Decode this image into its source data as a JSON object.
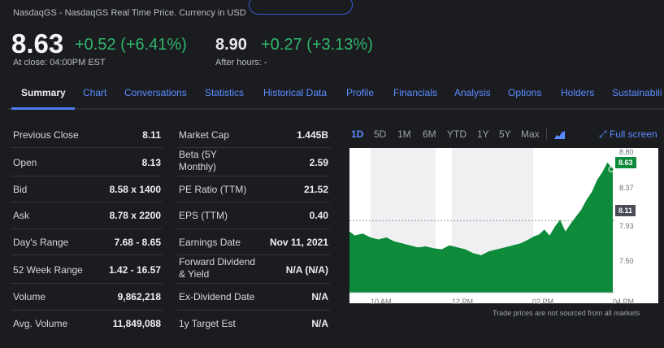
{
  "header": {
    "source": "NasdaqGS - NasdaqGS Real Time Price. Currency in USD",
    "price": "8.63",
    "change": "+0.52 (+6.41%)",
    "close_label": "At close: 04:00PM EST",
    "after_price": "8.90",
    "after_change": "+0.27 (+3.13%)",
    "after_label": "After hours: -"
  },
  "tabs": [
    "Summary",
    "Chart",
    "Conversations",
    "Statistics",
    "Historical Data",
    "Profile",
    "Financials",
    "Analysis",
    "Options",
    "Holders",
    "Sustainabili"
  ],
  "left_table": [
    {
      "label": "Previous Close",
      "value": "8.11"
    },
    {
      "label": "Open",
      "value": "8.13"
    },
    {
      "label": "Bid",
      "value": "8.58 x 1400"
    },
    {
      "label": "Ask",
      "value": "8.78 x 2200"
    },
    {
      "label": "Day's Range",
      "value": "7.68 - 8.65"
    },
    {
      "label": "52 Week Range",
      "value": "1.42 - 16.57"
    },
    {
      "label": "Volume",
      "value": "9,862,218"
    },
    {
      "label": "Avg. Volume",
      "value": "11,849,088"
    }
  ],
  "right_table": [
    {
      "label": "Market Cap",
      "value": "1.445B"
    },
    {
      "label": "Beta (5Y Monthly)",
      "value": "2.59"
    },
    {
      "label": "PE Ratio (TTM)",
      "value": "21.52"
    },
    {
      "label": "EPS (TTM)",
      "value": "0.40"
    },
    {
      "label": "Earnings Date",
      "value": "Nov 11, 2021"
    },
    {
      "label": "Forward Dividend & Yield",
      "value": "N/A (N/A)"
    },
    {
      "label": "Ex-Dividend Date",
      "value": "N/A"
    },
    {
      "label": "1y Target Est",
      "value": "N/A"
    }
  ],
  "chart": {
    "ranges": [
      "1D",
      "5D",
      "1M",
      "6M",
      "YTD",
      "1Y",
      "5Y",
      "Max"
    ],
    "active_range": "1D",
    "fullscreen_label": "Full screen",
    "disclaimer": "Trade prices are not sourced from all markets",
    "current_tag": "8.63",
    "prev_close_tag": "8.11",
    "colors": {
      "area": "#0d8a3a",
      "current": "#0d8a3a",
      "prev": "#4a4d55"
    }
  },
  "chart_data": {
    "type": "area",
    "x_ticks": [
      "10 AM",
      "12 PM",
      "02 PM",
      "04 PM"
    ],
    "y_ticks": [
      "8.80",
      "8.37",
      "7.93",
      "7.50"
    ],
    "ylim": [
      7.38,
      8.83
    ],
    "x": [
      0,
      0.02,
      0.05,
      0.08,
      0.11,
      0.14,
      0.17,
      0.2,
      0.23,
      0.26,
      0.29,
      0.32,
      0.35,
      0.38,
      0.41,
      0.44,
      0.47,
      0.5,
      0.53,
      0.56,
      0.59,
      0.62,
      0.65,
      0.68,
      0.7,
      0.72,
      0.74,
      0.76,
      0.78,
      0.8,
      0.82,
      0.84,
      0.86,
      0.88,
      0.9,
      0.92,
      0.94,
      0.96,
      0.98,
      1.0
    ],
    "values": [
      8.0,
      7.96,
      7.98,
      7.94,
      7.92,
      7.94,
      7.9,
      7.88,
      7.86,
      7.84,
      7.85,
      7.83,
      7.82,
      7.86,
      7.84,
      7.82,
      7.78,
      7.76,
      7.8,
      7.82,
      7.84,
      7.86,
      7.88,
      7.92,
      7.95,
      7.97,
      8.02,
      7.96,
      8.05,
      8.12,
      8.0,
      8.08,
      8.15,
      8.22,
      8.32,
      8.4,
      8.52,
      8.6,
      8.7,
      8.63
    ],
    "previous_close": 8.11
  }
}
